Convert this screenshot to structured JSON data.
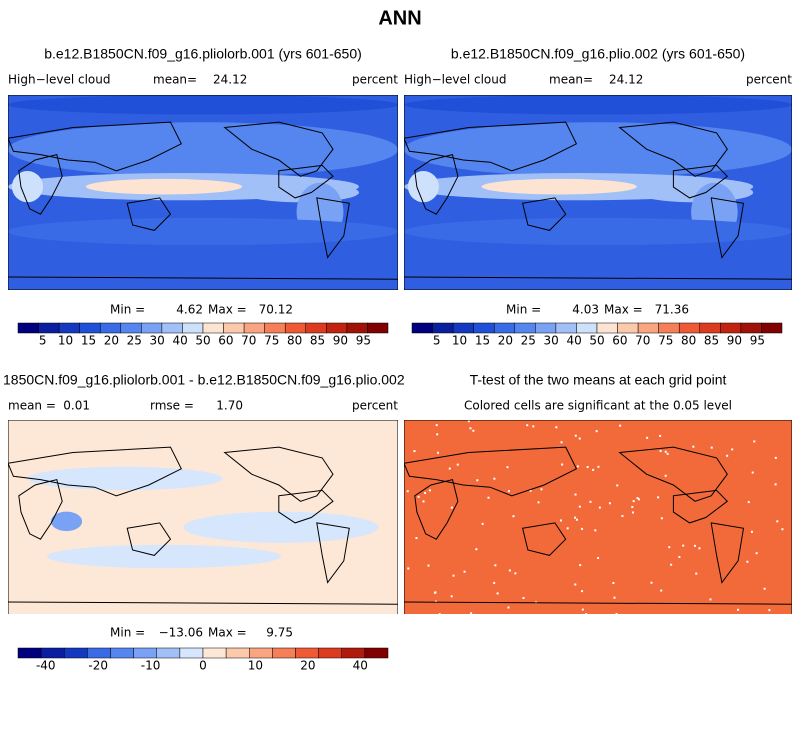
{
  "title": "ANN",
  "panels": [
    {
      "title": "b.e12.B1850CN.f09_g16.pliolorb.001 (yrs 601-650)",
      "left": "High−level cloud",
      "mean_label": "mean=",
      "mean": 24.12,
      "right": "percent",
      "min_label": "Min =",
      "min": 4.62,
      "max_label": "Max =",
      "max": 70.12
    },
    {
      "title": "b.e12.B1850CN.f09_g16.plio.002 (yrs 601-650)",
      "left": "High−level cloud",
      "mean_label": "mean=",
      "mean": 24.12,
      "right": "percent",
      "min_label": "Min =",
      "min": 4.03,
      "max_label": "Max =",
      "max": 71.36
    },
    {
      "title": "1850CN.f09_g16.pliolorb.001 - b.e12.B1850CN.f09_g16.plio.002",
      "mean_label": "mean =",
      "mean": 0.01,
      "rmse_label": "rmse =",
      "rmse": "1.70",
      "right": "percent",
      "min_label": "Min =",
      "min": "−13.06",
      "max_label": "Max =",
      "max": 9.75
    },
    {
      "title": "T-test of the two means at each grid point",
      "subtitle": "Colored cells are significant at the 0.05 level"
    }
  ],
  "colorbars": [
    {
      "colors": [
        "#00007f",
        "#0a1fa0",
        "#1438c0",
        "#2050d8",
        "#3a6be6",
        "#5585ee",
        "#7aa2f4",
        "#a2c0f8",
        "#cde0fc",
        "#fde4d2",
        "#fcc9ab",
        "#f9a581",
        "#f57f59",
        "#ef5a34",
        "#dd3b1f",
        "#c22311",
        "#a01208",
        "#800000"
      ],
      "labels": [
        5,
        10,
        15,
        20,
        25,
        30,
        40,
        50,
        60,
        70,
        75,
        80,
        85,
        90,
        95
      ]
    },
    {
      "colors": [
        "#00007f",
        "#0a1fa0",
        "#1438c0",
        "#2050d8",
        "#3a6be6",
        "#5585ee",
        "#7aa2f4",
        "#a2c0f8",
        "#cde0fc",
        "#fde4d2",
        "#fcc9ab",
        "#f9a581",
        "#f57f59",
        "#ef5a34",
        "#dd3b1f",
        "#c22311",
        "#a01208",
        "#800000"
      ],
      "labels": [
        5,
        10,
        15,
        20,
        25,
        30,
        40,
        50,
        60,
        70,
        75,
        80,
        85,
        90,
        95
      ]
    },
    {
      "colors": [
        "#00007f",
        "#0a1fa0",
        "#1438c0",
        "#3a6be6",
        "#5585ee",
        "#7aa2f4",
        "#a2c0f8",
        "#d6e6fc",
        "#fde8d8",
        "#fcc9ab",
        "#f9a581",
        "#f57f59",
        "#ef5a34",
        "#dd3b1f",
        "#b01a0c",
        "#800000"
      ],
      "labels": [
        -40,
        -20,
        -10,
        0,
        10,
        20,
        40
      ]
    }
  ]
}
